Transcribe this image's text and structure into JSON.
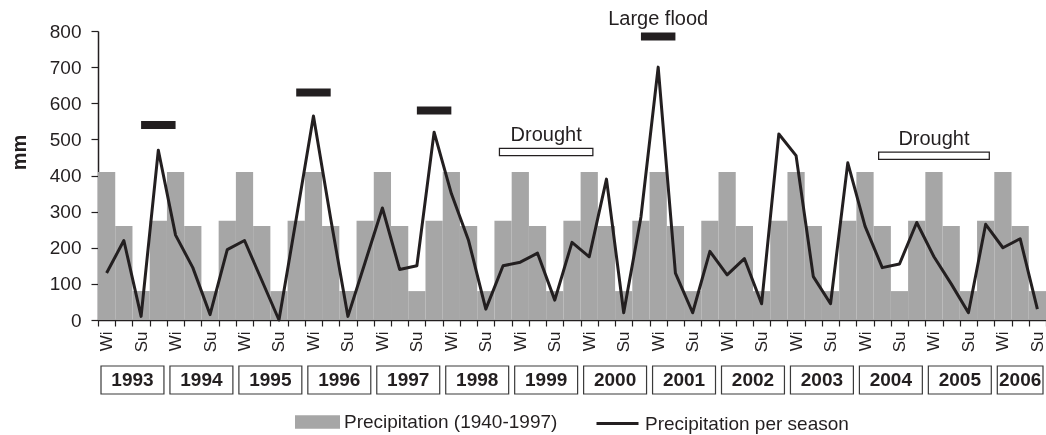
{
  "chart_data": {
    "type": "bar",
    "ylabel": "mm",
    "ylim": [
      0,
      800
    ],
    "yticks": [
      0,
      100,
      200,
      300,
      400,
      500,
      600,
      700,
      800
    ],
    "categories": [
      "Wi",
      null,
      "Su",
      null,
      "Wi",
      null,
      "Su",
      null,
      "Wi",
      null,
      "Su",
      null,
      "Wi",
      null,
      "Su",
      null,
      "Wi",
      null,
      "Su",
      null,
      "Wi",
      null,
      "Su",
      null,
      "Wi",
      null,
      "Su",
      null,
      "Wi",
      null,
      "Su",
      null,
      "Wi",
      null,
      "Su",
      null,
      "Wi",
      null,
      "Su",
      null,
      "Wi",
      null,
      "Su",
      null,
      "Wi",
      null,
      "Su",
      null,
      "Wi",
      null,
      "Su",
      null,
      "Wi",
      null,
      "Su"
    ],
    "annotations": [
      "1993",
      "1994",
      "1995",
      "1996",
      "1997",
      "1998",
      "1999",
      "2000",
      "2001",
      "2002",
      "2003",
      "2004",
      "2005",
      "2006"
    ],
    "series": [
      {
        "name": "Precipitation (1940-1997)",
        "color": "#a6a6a6",
        "values": [
          410,
          260,
          80,
          275,
          410,
          260,
          80,
          275,
          410,
          260,
          80,
          275,
          410,
          260,
          80,
          275,
          410,
          260,
          80,
          275,
          410,
          260,
          80,
          275,
          410,
          260,
          80,
          275,
          410,
          260,
          80,
          275,
          410,
          260,
          80,
          275,
          410,
          260,
          80,
          275,
          410,
          260,
          80,
          275,
          410,
          260,
          80,
          275,
          410,
          260,
          80,
          275,
          410,
          260,
          80
        ]
      },
      {
        "name": "Precipitation per season",
        "type": "line",
        "color": "#231f20",
        "values": [
          130,
          220,
          10,
          470,
          235,
          145,
          15,
          195,
          220,
          110,
          0,
          280,
          565,
          280,
          10,
          160,
          310,
          140,
          150,
          520,
          350,
          220,
          30,
          150,
          160,
          185,
          55,
          215,
          175,
          390,
          20,
          285,
          700,
          130,
          20,
          190,
          125,
          170,
          45,
          515,
          455,
          120,
          45,
          435,
          260,
          145,
          155,
          270,
          175,
          100,
          20,
          265,
          200,
          225,
          30
        ]
      },
      {
        "type": "line",
        "color": "#231f20",
        "values": [
          null,
          null,
          540,
          540,
          540,
          null,
          null,
          null,
          null,
          null,
          null,
          630,
          630,
          630,
          null,
          null,
          null,
          null,
          580,
          580,
          580,
          null,
          null,
          null,
          null,
          null,
          null,
          null,
          null,
          null,
          null,
          null,
          null,
          null,
          null,
          null,
          null,
          null,
          null,
          null,
          null,
          null,
          null,
          null,
          null,
          null,
          null,
          null,
          null,
          null,
          null,
          null,
          null,
          null,
          null
        ]
      },
      {
        "name": "Large flood",
        "type": "line",
        "color": "#231f20",
        "values": [
          null,
          null,
          null,
          null,
          null,
          null,
          null,
          null,
          null,
          null,
          null,
          null,
          null,
          null,
          null,
          null,
          null,
          null,
          null,
          null,
          null,
          null,
          null,
          null,
          null,
          null,
          null,
          null,
          null,
          null,
          null,
          785,
          785,
          785,
          null,
          null,
          null,
          null,
          null,
          null,
          null,
          null,
          null,
          null,
          null,
          null,
          null,
          null,
          null,
          null,
          null,
          null,
          null,
          null,
          null
        ]
      },
      {
        "name": "Drought",
        "type": "line",
        "color": "#ffffff",
        "values": [
          null,
          null,
          null,
          null,
          null,
          null,
          null,
          null,
          null,
          null,
          null,
          null,
          null,
          null,
          null,
          null,
          null,
          null,
          null,
          null,
          null,
          null,
          null,
          465,
          465,
          465,
          465,
          465,
          465,
          null,
          null,
          null,
          null,
          null,
          null,
          null,
          null,
          null,
          null,
          null,
          null,
          null,
          null,
          null,
          null,
          455,
          455,
          455,
          455,
          455,
          455,
          455,
          null,
          null,
          null
        ]
      }
    ],
    "legend": "bottom",
    "grid": false
  }
}
